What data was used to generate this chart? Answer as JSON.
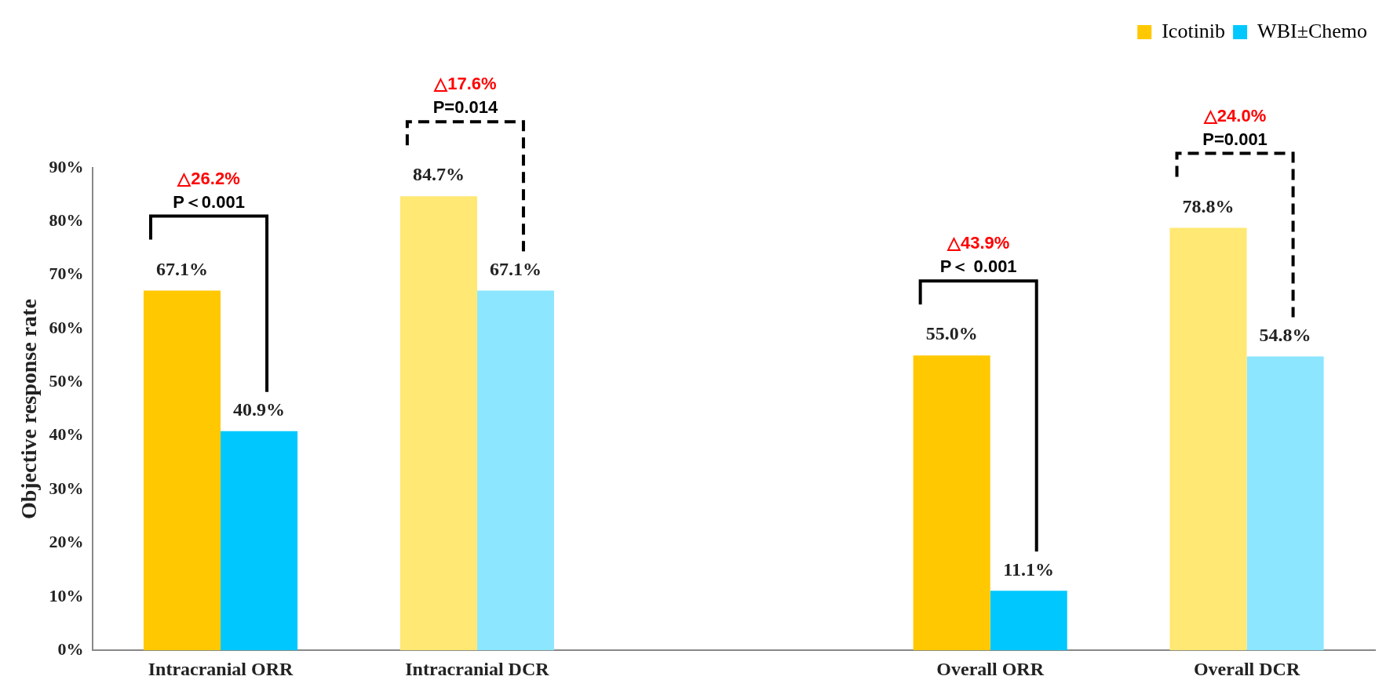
{
  "chart_data": {
    "type": "bar",
    "ylabel": "Objective response rate",
    "categories": [
      "Intracranial ORR",
      "Intracranial DCR",
      null,
      "Overall ORR",
      "Overall DCR"
    ],
    "series": [
      {
        "name": "Icotinib",
        "color": "#ffc800",
        "colors": [
          "#ffc800",
          "#ffe873",
          null,
          "#ffc800",
          "#ffe873"
        ],
        "values": [
          67.1,
          84.7,
          null,
          55.0,
          78.8
        ],
        "value_labels": [
          "67.1%",
          "84.7%",
          null,
          "55.0%",
          "78.8%"
        ]
      },
      {
        "name": "WBI±Chemo",
        "color": "#00c8ff",
        "colors": [
          "#00c8ff",
          "#8ce6ff",
          null,
          "#00c8ff",
          "#8ce6ff"
        ],
        "values": [
          40.9,
          67.1,
          null,
          11.1,
          54.8
        ],
        "value_labels": [
          "40.9%",
          "67.1%",
          null,
          "11.1%",
          "54.8%"
        ]
      }
    ],
    "ylim": [
      0,
      90
    ],
    "yticks": [
      {
        "value": 0,
        "label": "0%"
      },
      {
        "value": 10,
        "label": "10%"
      },
      {
        "value": 20,
        "label": "20%"
      },
      {
        "value": 30,
        "label": "30%"
      },
      {
        "value": 40,
        "label": "40%"
      },
      {
        "value": 50,
        "label": "50%"
      },
      {
        "value": 60,
        "label": "60%"
      },
      {
        "value": 70,
        "label": "70%"
      },
      {
        "value": 80,
        "label": "80%"
      },
      {
        "value": 90,
        "label": "90%"
      }
    ],
    "grid": false,
    "legend": "top right",
    "annotations": [
      "△26.2%",
      "P＜0.001",
      "△17.6%",
      "P=0.014",
      "△43.9%",
      "P＜ 0.001",
      "△24.0%",
      "P=0.001"
    ]
  }
}
